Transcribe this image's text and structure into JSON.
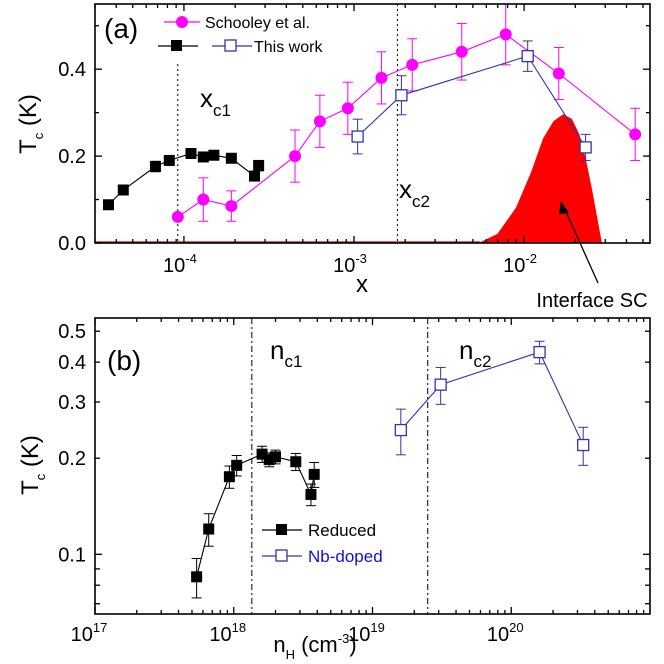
{
  "chart_data": [
    {
      "panel": "(a)",
      "type": "scatter",
      "xscale": "log",
      "xlim": [
        3e-05,
        0.055
      ],
      "ylim": [
        0,
        0.55
      ],
      "xlabel": "x",
      "ylabel_main": "T",
      "ylabel_sub": "c",
      "ylabel_unit": " (K)",
      "x_ticks": [
        {
          "value": 0.0001,
          "base": "10",
          "exp": "-4"
        },
        {
          "value": 0.001,
          "base": "10",
          "exp": "-3"
        },
        {
          "value": 0.01,
          "base": "10",
          "exp": "-2"
        }
      ],
      "y_ticks": [
        {
          "value": 0,
          "label": "0.0"
        },
        {
          "value": 0.2,
          "label": "0.2"
        },
        {
          "value": 0.4,
          "label": "0.4"
        }
      ],
      "series": [
        {
          "name": "Schooley et al.",
          "color": "#ff00ff",
          "marker": "circle-filled",
          "x": [
            9.2e-05,
            0.00013,
            0.00019,
            0.00045,
            0.00063,
            0.00092,
            0.00145,
            0.0022,
            0.0043,
            0.0078,
            0.016,
            0.045
          ],
          "y": [
            0.06,
            0.1,
            0.085,
            0.2,
            0.28,
            0.31,
            0.38,
            0.41,
            0.44,
            0.48,
            0.39,
            0.25
          ],
          "err": [
            0,
            0.05,
            0.035,
            0.06,
            0.06,
            0.06,
            0.06,
            0.06,
            0.065,
            0.07,
            0.06,
            0.06
          ]
        },
        {
          "name": "",
          "color": "#000000",
          "marker": "square-filled",
          "x": [
            3.6e-05,
            4.4e-05,
            6.8e-05,
            8.2e-05,
            0.00011,
            0.00013,
            0.00015,
            0.00019,
            0.00026,
            0.000275
          ],
          "y": [
            0.088,
            0.122,
            0.176,
            0.19,
            0.206,
            0.198,
            0.202,
            0.195,
            0.154,
            0.178
          ],
          "err": [
            0,
            0,
            0.012,
            0.01,
            0.008,
            0.008,
            0.008,
            0.008,
            0.01,
            0.012
          ]
        },
        {
          "name": "This work",
          "color": "#3333aa",
          "marker": "square-open",
          "x": [
            0.00105,
            0.0019,
            0.0105,
            0.023
          ],
          "y": [
            0.245,
            0.34,
            0.43,
            0.22
          ],
          "err": [
            0.04,
            0.045,
            0.035,
            0.03
          ]
        }
      ],
      "interface_sc": {
        "label": "Interface SC",
        "color": "#ff0000",
        "x": [
          0.0055,
          0.007,
          0.009,
          0.011,
          0.013,
          0.015,
          0.017,
          0.019,
          0.021,
          0.023,
          0.025,
          0.027,
          0.0285
        ],
        "y": [
          0,
          0.02,
          0.08,
          0.16,
          0.24,
          0.28,
          0.295,
          0.285,
          0.25,
          0.19,
          0.12,
          0.05,
          0
        ]
      },
      "vlines": [
        {
          "x": 9.2e-05,
          "label_main": "x",
          "label_sub": "c1"
        },
        {
          "x": 0.0018,
          "label_main": "x",
          "label_sub": "c2"
        }
      ],
      "legend": [
        {
          "label": "Schooley et al."
        },
        {
          "label": "This work"
        }
      ]
    },
    {
      "panel": "(b)",
      "type": "scatter",
      "xscale": "log",
      "yscale": "log",
      "xlim": [
        1e+17,
        1e+21
      ],
      "ylim": [
        0.065,
        0.55
      ],
      "xlabel_main": "n",
      "xlabel_sub": "H",
      "xlabel_unit": " (cm",
      "xlabel_exp": "-3",
      "xlabel_close": ")",
      "ylabel_main": "T",
      "ylabel_sub": "c",
      "ylabel_unit": " (K)",
      "x_ticks": [
        {
          "value": 1e+17,
          "base": "10",
          "exp": "17"
        },
        {
          "value": 1e+18,
          "base": "10",
          "exp": "18"
        },
        {
          "value": 1e+19,
          "base": "10",
          "exp": "19"
        },
        {
          "value": 1e+20,
          "base": "10",
          "exp": "20"
        }
      ],
      "y_ticks": [
        {
          "value": 0.1,
          "label": "0.1"
        },
        {
          "value": 0.2,
          "label": "0.2"
        },
        {
          "value": 0.3,
          "label": "0.3"
        },
        {
          "value": 0.4,
          "label": "0.4"
        },
        {
          "value": 0.5,
          "label": "0.5"
        }
      ],
      "series": [
        {
          "name": "Reduced",
          "color": "#000000",
          "marker": "square-filled",
          "x": [
            5.4e+17,
            6.6e+17,
            9.3e+17,
            1.05e+18,
            1.6e+18,
            1.8e+18,
            2e+18,
            2.8e+18,
            3.6e+18,
            3.8e+18
          ],
          "y": [
            0.085,
            0.12,
            0.175,
            0.19,
            0.206,
            0.198,
            0.202,
            0.195,
            0.154,
            0.178
          ],
          "err": [
            0.012,
            0.014,
            0.014,
            0.014,
            0.012,
            0.01,
            0.01,
            0.012,
            0.012,
            0.016
          ]
        },
        {
          "name": "Nb-doped",
          "color": "#3333aa",
          "marker": "square-open",
          "x": [
            1.6e+19,
            3.1e+19,
            1.6e+20,
            3.3e+20
          ],
          "y": [
            0.245,
            0.34,
            0.43,
            0.22
          ],
          "err": [
            0.04,
            0.045,
            0.035,
            0.03
          ]
        }
      ],
      "vlines": [
        {
          "x": 1.35e+18,
          "label_main": "n",
          "label_sub": "c1"
        },
        {
          "x": 2.5e+19,
          "label_main": "n",
          "label_sub": "c2"
        }
      ],
      "legend": [
        {
          "label": "Reduced",
          "color": "#000000"
        },
        {
          "label": "Nb-doped",
          "color": "#1010dd"
        }
      ]
    }
  ]
}
